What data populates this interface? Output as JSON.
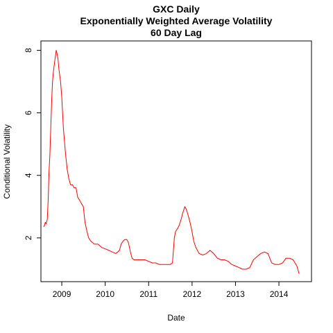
{
  "chart_data": {
    "type": "line",
    "title_lines": [
      "GXC Daily",
      "Exponentially Weighted Average Volatility",
      "60 Day Lag"
    ],
    "xlabel": "Date",
    "ylabel": "Conditional Volatility",
    "x_ticks": [
      "2009",
      "2010",
      "2011",
      "2012",
      "2013",
      "2014"
    ],
    "y_ticks": [
      2,
      4,
      6,
      8
    ],
    "xlim": [
      2008.52,
      2014.75
    ],
    "ylim": [
      0.6,
      8.3
    ],
    "grid": false,
    "legend": "none",
    "series_color": "#ff0000",
    "series": [
      {
        "x": [
          "2008-08-01",
          "2008-08-08",
          "2008-08-15",
          "2008-08-22",
          "2008-09-01",
          "2008-09-08",
          "2008-09-15",
          "2008-09-22",
          "2008-10-01",
          "2008-10-08",
          "2008-10-15",
          "2008-10-22",
          "2008-11-01",
          "2008-11-08",
          "2008-11-15",
          "2008-11-22",
          "2008-12-01",
          "2008-12-08",
          "2008-12-15",
          "2008-12-22",
          "2009-01-01",
          "2009-01-15",
          "2009-02-01",
          "2009-02-15",
          "2009-03-01",
          "2009-03-15",
          "2009-04-01",
          "2009-04-15",
          "2009-05-01",
          "2009-05-15",
          "2009-06-01",
          "2009-06-15",
          "2009-07-01",
          "2009-07-15",
          "2009-08-01",
          "2009-08-15",
          "2009-09-01",
          "2009-10-01",
          "2009-11-01",
          "2009-12-01",
          "2010-01-01",
          "2010-02-01",
          "2010-03-01",
          "2010-04-01",
          "2010-05-01",
          "2010-05-15",
          "2010-06-01",
          "2010-06-15",
          "2010-07-01",
          "2010-07-15",
          "2010-08-01",
          "2010-08-15",
          "2010-09-01",
          "2010-10-01",
          "2010-11-01",
          "2010-12-01",
          "2011-01-01",
          "2011-02-01",
          "2011-03-01",
          "2011-04-01",
          "2011-05-01",
          "2011-06-01",
          "2011-07-01",
          "2011-07-20",
          "2011-08-05",
          "2011-08-15",
          "2011-09-01",
          "2011-09-15",
          "2011-10-01",
          "2011-10-15",
          "2011-11-01",
          "2011-11-15",
          "2011-12-01",
          "2011-12-15",
          "2012-01-01",
          "2012-01-15",
          "2012-02-01",
          "2012-02-15",
          "2012-03-01",
          "2012-04-01",
          "2012-05-01",
          "2012-06-01",
          "2012-07-01",
          "2012-08-01",
          "2012-09-01",
          "2012-10-01",
          "2012-11-01",
          "2012-12-01",
          "2013-01-01",
          "2013-02-01",
          "2013-03-01",
          "2013-04-01",
          "2013-05-01",
          "2013-06-01",
          "2013-07-01",
          "2013-08-01",
          "2013-09-01",
          "2013-10-01",
          "2013-11-01",
          "2013-12-01",
          "2014-01-01",
          "2014-02-01",
          "2014-03-01",
          "2014-04-01",
          "2014-05-01",
          "2014-06-01",
          "2014-06-20"
        ],
        "y": [
          2.35,
          2.4,
          2.5,
          2.45,
          2.6,
          3.2,
          4.1,
          4.6,
          5.6,
          6.4,
          7.0,
          7.3,
          7.6,
          7.8,
          8.0,
          7.9,
          7.7,
          7.4,
          7.2,
          7.0,
          6.5,
          5.5,
          4.7,
          4.2,
          3.9,
          3.7,
          3.7,
          3.6,
          3.6,
          3.3,
          3.2,
          3.1,
          3.0,
          2.5,
          2.2,
          2.0,
          1.9,
          1.8,
          1.8,
          1.7,
          1.65,
          1.6,
          1.55,
          1.5,
          1.6,
          1.8,
          1.9,
          1.95,
          1.95,
          1.85,
          1.55,
          1.35,
          1.3,
          1.3,
          1.3,
          1.3,
          1.25,
          1.2,
          1.2,
          1.15,
          1.15,
          1.15,
          1.15,
          1.2,
          2.0,
          2.2,
          2.3,
          2.4,
          2.6,
          2.8,
          3.0,
          2.9,
          2.7,
          2.5,
          2.2,
          1.9,
          1.7,
          1.6,
          1.5,
          1.45,
          1.5,
          1.6,
          1.5,
          1.35,
          1.3,
          1.3,
          1.25,
          1.15,
          1.1,
          1.05,
          1.0,
          1.0,
          1.05,
          1.3,
          1.4,
          1.5,
          1.55,
          1.5,
          1.2,
          1.15,
          1.15,
          1.2,
          1.35,
          1.35,
          1.3,
          1.1,
          0.85
        ]
      }
    ]
  }
}
